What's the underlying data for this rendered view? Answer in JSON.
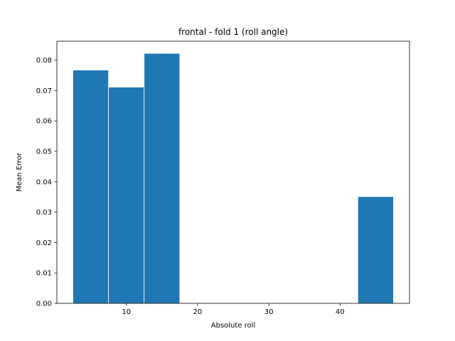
{
  "chart_data": {
    "type": "bar",
    "title": "frontal - fold 1 (roll angle)",
    "xlabel": "Absolute roll",
    "ylabel": "Mean Error",
    "xlim": [
      0.25,
      49.75
    ],
    "ylim": [
      0,
      0.0862
    ],
    "grid": false,
    "bar_width": 5,
    "bar_color": "#1f77b4",
    "bars": [
      {
        "x": 5,
        "value": 0.0767
      },
      {
        "x": 10,
        "value": 0.0711
      },
      {
        "x": 15,
        "value": 0.0822
      },
      {
        "x": 45,
        "value": 0.0351
      }
    ],
    "x_ticks": [
      {
        "value": 10,
        "label": "10"
      },
      {
        "value": 20,
        "label": "20"
      },
      {
        "value": 30,
        "label": "30"
      },
      {
        "value": 40,
        "label": "40"
      }
    ],
    "y_ticks": [
      {
        "value": 0.0,
        "label": "0.00"
      },
      {
        "value": 0.01,
        "label": "0.01"
      },
      {
        "value": 0.02,
        "label": "0.02"
      },
      {
        "value": 0.03,
        "label": "0.03"
      },
      {
        "value": 0.04,
        "label": "0.04"
      },
      {
        "value": 0.05,
        "label": "0.05"
      },
      {
        "value": 0.06,
        "label": "0.06"
      },
      {
        "value": 0.07,
        "label": "0.07"
      },
      {
        "value": 0.08,
        "label": "0.08"
      }
    ]
  }
}
